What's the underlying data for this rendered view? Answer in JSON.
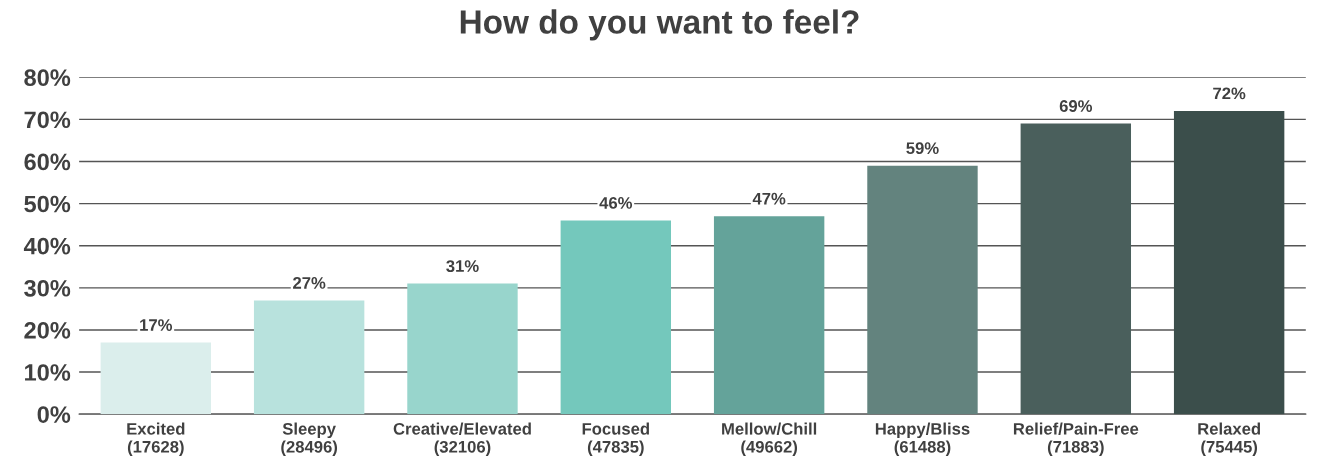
{
  "chart_data": {
    "type": "bar",
    "title": "How do you want to feel?",
    "categories": [
      "Excited\n(17628)",
      "Sleepy\n(28496)",
      "Creative/Elevated\n(32106)",
      "Focused\n(47835)",
      "Mellow/Chill\n(49662)",
      "Happy/Bliss\n(61488)",
      "Relief/Pain-Free\n(71883)",
      "Relaxed\n(75445)"
    ],
    "values": [
      17,
      27,
      31,
      46,
      47,
      59,
      69,
      72
    ],
    "value_labels": [
      "17%",
      "27%",
      "31%",
      "46%",
      "47%",
      "59%",
      "69%",
      "72%"
    ],
    "colors": [
      "#dbeeec",
      "#b8e2dd",
      "#98d5cc",
      "#74c8bc",
      "#64a39a",
      "#63837e",
      "#4a5f5c",
      "#3b4e4b"
    ],
    "ylim": [
      0,
      80
    ],
    "yticks": [
      {
        "value": 0,
        "label": "0%"
      },
      {
        "value": 10,
        "label": "10%"
      },
      {
        "value": 20,
        "label": "20%"
      },
      {
        "value": 30,
        "label": "30%"
      },
      {
        "value": 40,
        "label": "40%"
      },
      {
        "value": 50,
        "label": "50%"
      },
      {
        "value": 60,
        "label": "60%"
      },
      {
        "value": 70,
        "label": "70%"
      },
      {
        "value": 80,
        "label": "80%"
      }
    ],
    "grid": "y",
    "legend": false
  }
}
